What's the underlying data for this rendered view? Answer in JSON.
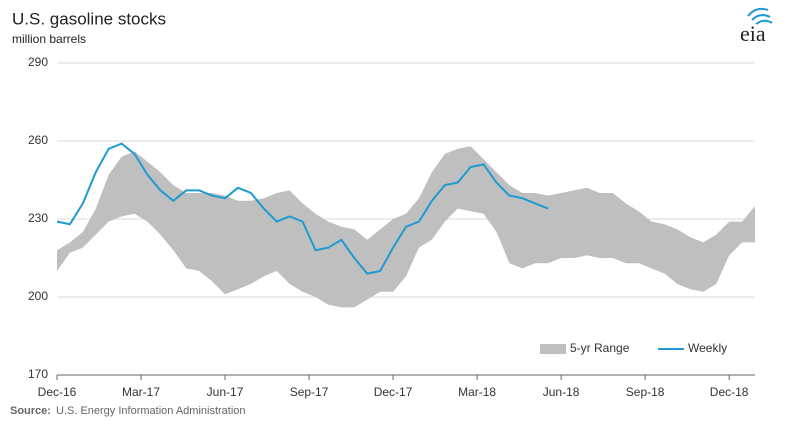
{
  "chart_data": {
    "type": "range_line",
    "title": "U.S. gasoline stocks",
    "subtitle": "million barrels",
    "source_label": "Source:",
    "source": "U.S. Energy Information Administration",
    "logo": "eia",
    "x": [
      0,
      2,
      4,
      6,
      8,
      10,
      12,
      14,
      16,
      18,
      20,
      22,
      24,
      26,
      28,
      30,
      32,
      34,
      36,
      38,
      40,
      42,
      44,
      46,
      48,
      50,
      52,
      54,
      56,
      58,
      60,
      62,
      64,
      66,
      68,
      70,
      72,
      74,
      76,
      78,
      80,
      82,
      84,
      86,
      88,
      90,
      92,
      94,
      96,
      98,
      100,
      102,
      104,
      106,
      108
    ],
    "series": [
      {
        "name": "5-yr Range",
        "color": "#bfbfbf",
        "upper": [
          218,
          221,
          225,
          234,
          247,
          254,
          256,
          252,
          248,
          243,
          240,
          240,
          240,
          239,
          237,
          237,
          238,
          240,
          241,
          236,
          232,
          229,
          227,
          226,
          222,
          226,
          230,
          232,
          238,
          248,
          255,
          257,
          258,
          253,
          248,
          243,
          240,
          240,
          239,
          240,
          241,
          242,
          240,
          240,
          236,
          233,
          229,
          228,
          226,
          223,
          221,
          224,
          229,
          229,
          235
        ],
        "lower": [
          210,
          217,
          219,
          224,
          229,
          231,
          232,
          229,
          224,
          218,
          211,
          210,
          206,
          201,
          203,
          205,
          208,
          210,
          205,
          202,
          200,
          197,
          196,
          196,
          199,
          202,
          202,
          208,
          219,
          222,
          229,
          234,
          233,
          232,
          225,
          213,
          211,
          213,
          213,
          215,
          215,
          216,
          215,
          215,
          213,
          213,
          211,
          209,
          205,
          203,
          202,
          205,
          216,
          221,
          221
        ]
      },
      {
        "name": "Weekly",
        "color": "#1f9bd1",
        "values": [
          229,
          228,
          236,
          248,
          257,
          259,
          255,
          247,
          241,
          237,
          241,
          241,
          239,
          238,
          242,
          240,
          234,
          229,
          231,
          229,
          218,
          219,
          222,
          215,
          209,
          210,
          219,
          227,
          229,
          237,
          243,
          244,
          250,
          251,
          244,
          239,
          238,
          236,
          234,
          null,
          null,
          null,
          null,
          null,
          null,
          null,
          null,
          null,
          null,
          null,
          null,
          null,
          null,
          null,
          null
        ]
      }
    ],
    "xlim": [
      0,
      108
    ],
    "xticks": [
      {
        "value": 0,
        "label": "Dec-16"
      },
      {
        "value": 13,
        "label": "Mar-17"
      },
      {
        "value": 26,
        "label": "Jun-17"
      },
      {
        "value": 39,
        "label": "Sep-17"
      },
      {
        "value": 52,
        "label": "Dec-17"
      },
      {
        "value": 65,
        "label": "Mar-18"
      },
      {
        "value": 78,
        "label": "Jun-18"
      },
      {
        "value": 91,
        "label": "Sep-18"
      },
      {
        "value": 104,
        "label": "Dec-18"
      }
    ],
    "ylim": [
      170,
      290
    ],
    "yticks": [
      170,
      200,
      230,
      260,
      290
    ],
    "grid": true,
    "legend": "bottom-right"
  }
}
